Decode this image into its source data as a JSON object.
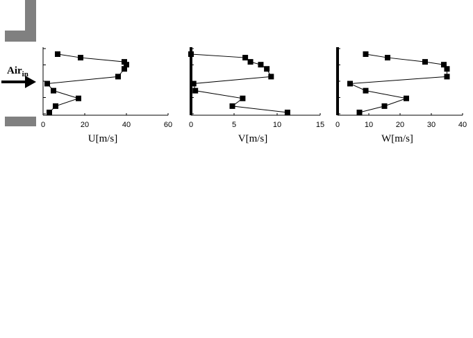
{
  "annotation": {
    "label": "Air",
    "subscript": "in"
  },
  "chart_data": [
    {
      "type": "line",
      "xlabel": "U[m/s]",
      "ylabel": "",
      "xlim": [
        0,
        60
      ],
      "ylim": [
        0,
        1
      ],
      "xticks": [
        "0",
        "20",
        "40",
        "60"
      ],
      "yticks_count": 5,
      "points": [
        {
          "x": 3,
          "y": 0.0
        },
        {
          "x": 6,
          "y": 0.09
        },
        {
          "x": 17,
          "y": 0.2
        },
        {
          "x": 5,
          "y": 0.31
        },
        {
          "x": 2,
          "y": 0.41
        },
        {
          "x": 36,
          "y": 0.51
        },
        {
          "x": 39,
          "y": 0.62
        },
        {
          "x": 40,
          "y": 0.68
        },
        {
          "x": 39,
          "y": 0.72
        },
        {
          "x": 18,
          "y": 0.78
        },
        {
          "x": 7,
          "y": 0.83
        }
      ]
    },
    {
      "type": "line",
      "xlabel": "V[m/s]",
      "ylabel": "",
      "xlim": [
        0,
        15
      ],
      "ylim": [
        0,
        1
      ],
      "xticks": [
        "0",
        "5",
        "10",
        "15"
      ],
      "yticks_count": 5,
      "points": [
        {
          "x": 11.2,
          "y": 0.0
        },
        {
          "x": 4.8,
          "y": 0.09
        },
        {
          "x": 6.0,
          "y": 0.2
        },
        {
          "x": 0.5,
          "y": 0.31
        },
        {
          "x": 0.3,
          "y": 0.41
        },
        {
          "x": 9.3,
          "y": 0.51
        },
        {
          "x": 8.8,
          "y": 0.62
        },
        {
          "x": 8.1,
          "y": 0.68
        },
        {
          "x": 6.9,
          "y": 0.72
        },
        {
          "x": 6.3,
          "y": 0.78
        },
        {
          "x": 0.0,
          "y": 0.83
        }
      ]
    },
    {
      "type": "line",
      "xlabel": "W[m/s]",
      "ylabel": "",
      "xlim": [
        0,
        40
      ],
      "ylim": [
        0,
        1
      ],
      "xticks": [
        "0",
        "10",
        "20",
        "30",
        "40"
      ],
      "yticks_count": 5,
      "points": [
        {
          "x": 7,
          "y": 0.0
        },
        {
          "x": 15,
          "y": 0.09
        },
        {
          "x": 22,
          "y": 0.2
        },
        {
          "x": 9,
          "y": 0.31
        },
        {
          "x": 4,
          "y": 0.41
        },
        {
          "x": 35,
          "y": 0.51
        },
        {
          "x": 35,
          "y": 0.62
        },
        {
          "x": 34,
          "y": 0.68
        },
        {
          "x": 28,
          "y": 0.72
        },
        {
          "x": 16,
          "y": 0.78
        },
        {
          "x": 9,
          "y": 0.83
        }
      ]
    }
  ]
}
